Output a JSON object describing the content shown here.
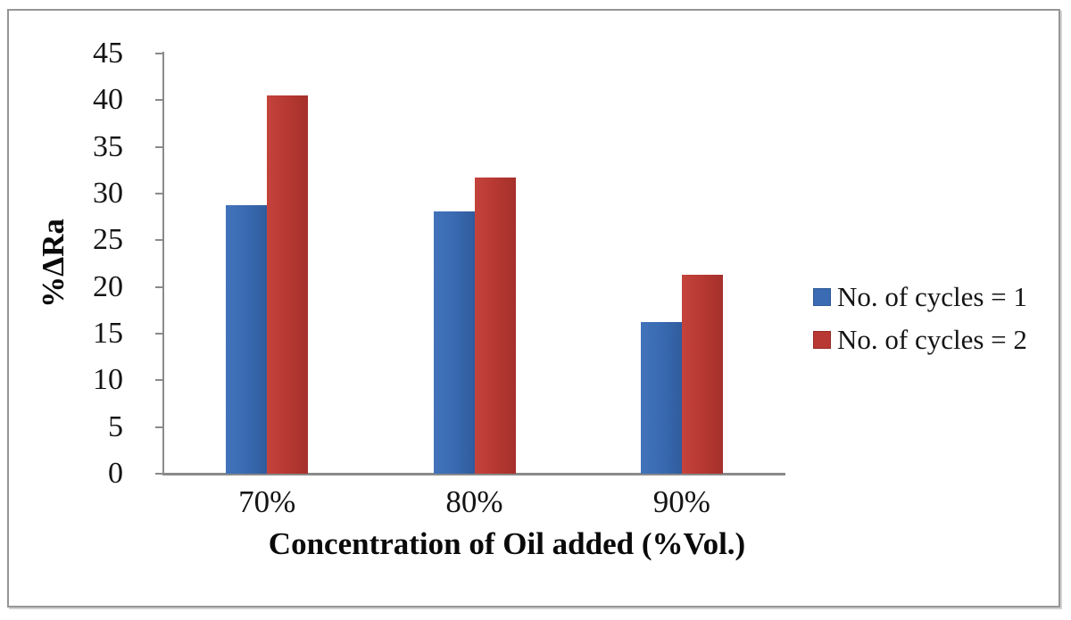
{
  "chart_data": {
    "type": "bar",
    "title": "",
    "categories": [
      "70%",
      "80%",
      "90%"
    ],
    "series": [
      {
        "name": "No. of cycles = 1",
        "color": "#3A6BB3",
        "values": [
          28.8,
          28.1,
          16.2
        ]
      },
      {
        "name": "No. of cycles = 2",
        "color": "#B83933",
        "values": [
          40.5,
          31.7,
          21.3
        ]
      }
    ],
    "xlabel": "Concentration of Oil added (%Vol.)",
    "ylabel": "%ΔRa",
    "ylim": [
      0,
      45
    ],
    "ytick_step": 5,
    "ytick_labels": [
      "0",
      "5",
      "10",
      "15",
      "20",
      "25",
      "30",
      "35",
      "40",
      "45"
    ],
    "grid": false,
    "legend_position": "right",
    "axis_color": "#8A8A8A",
    "text_color": "#141414"
  }
}
